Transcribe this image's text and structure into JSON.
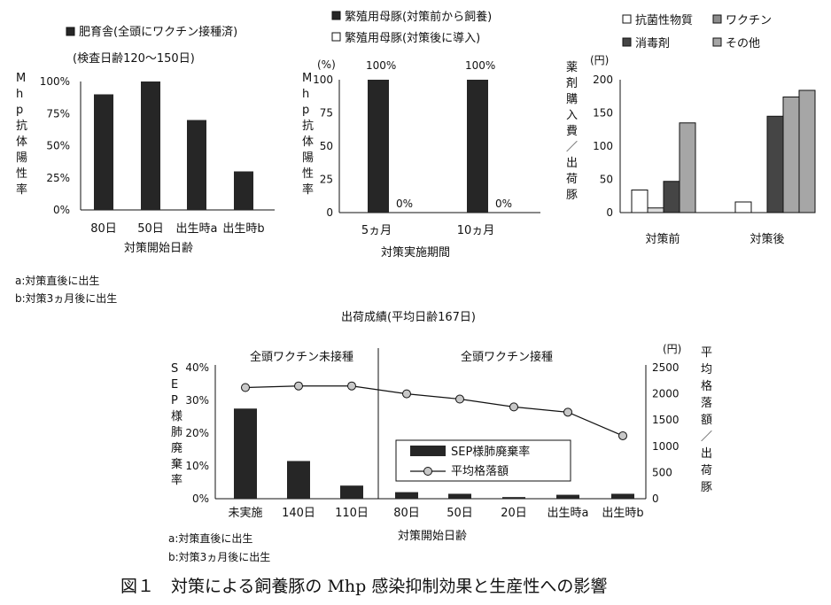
{
  "caption": "図１　対策による飼養豚の Mhp 感染抑制効果と生産性への影響",
  "chart_data": [
    {
      "type": "bar",
      "legend": [
        "肥育舎(全頭にワクチン接種済)"
      ],
      "subtitle": "(検査日齢120～150日)",
      "ylabel": "Mhp抗体陽性率",
      "xlabel": "対策開始日齢",
      "categories": [
        "80日",
        "50日",
        "出生時a",
        "出生時b"
      ],
      "yticks": [
        "0%",
        "25%",
        "50%",
        "75%",
        "100%"
      ],
      "ylim": [
        0,
        100
      ],
      "values": [
        90,
        100,
        70,
        30
      ],
      "notes": [
        "a:対策直後に出生",
        "b:対策3ヵ月後に出生"
      ],
      "color": "#262626"
    },
    {
      "type": "bar",
      "series": [
        {
          "name": "繁殖用母豚(対策前から飼養)",
          "values": [
            100,
            100
          ],
          "labels": [
            "100%",
            "100%"
          ],
          "color": "#262626"
        },
        {
          "name": "繁殖用母豚(対策後に導入)",
          "values": [
            0,
            0
          ],
          "labels": [
            "0%",
            "0%"
          ],
          "color": "#ffffff"
        }
      ],
      "yunit": "(%)",
      "ylabel": "Mhp抗体陽性率",
      "xlabel": "対策実施期間",
      "categories": [
        "5ヵ月",
        "10ヵ月"
      ],
      "yticks": [
        "0",
        "25",
        "50",
        "75",
        "100"
      ],
      "ylim": [
        0,
        100
      ]
    },
    {
      "type": "bar",
      "series": [
        {
          "name": "抗菌性物質",
          "values": [
            34,
            16
          ],
          "color": "#ffffff"
        },
        {
          "name": "消毒剤",
          "values": [
            7,
            0
          ],
          "color": "#dcdcdc"
        },
        {
          "name": "ワクチン",
          "values": [
            47,
            145
          ],
          "color": "#454545"
        },
        {
          "name": "その他",
          "values": [
            135,
            174
          ],
          "color": "#8c8c8c"
        }
      ],
      "extra_bar_after": [
        0,
        184
      ],
      "yunit": "(円)",
      "ylabel": "薬剤購入費／出荷豚",
      "categories": [
        "対策前",
        "対策後"
      ],
      "yticks": [
        "0",
        "50",
        "100",
        "150",
        "200"
      ],
      "ylim": [
        0,
        200
      ]
    },
    {
      "type": "bar+line",
      "title": "出荷成績(平均日齢167日)",
      "sections": [
        "全頭ワクチン未接種",
        "全頭ワクチン接種"
      ],
      "categories": [
        "未実施",
        "140日",
        "110日",
        "80日",
        "50日",
        "20日",
        "出生時a",
        "出生時b"
      ],
      "xlabel": "対策開始日齢",
      "series": [
        {
          "name": "SEP様肺廃棄率",
          "type": "bar",
          "axis": "left",
          "values": [
            27.5,
            11.5,
            4,
            2,
            1.5,
            0.5,
            1.2,
            1.5
          ],
          "color": "#262626"
        },
        {
          "name": "平均格落額",
          "type": "line",
          "axis": "right",
          "values": [
            2120,
            2150,
            2150,
            2000,
            1900,
            1750,
            1650,
            1200
          ],
          "color": "#c8c8c8"
        }
      ],
      "ylabel_left": "SEP様肺廃棄率",
      "yticks_left": [
        "0%",
        "10%",
        "20%",
        "30%",
        "40%"
      ],
      "ylim_left": [
        0,
        40
      ],
      "yunit_right": "(円)",
      "ylabel_right": "平均格落額／出荷豚",
      "yticks_right": [
        "0",
        "500",
        "1000",
        "1500",
        "2000",
        "2500"
      ],
      "ylim_right": [
        0,
        2500
      ],
      "notes": [
        "a:対策直後に出生",
        "b:対策3ヵ月後に出生"
      ]
    }
  ]
}
